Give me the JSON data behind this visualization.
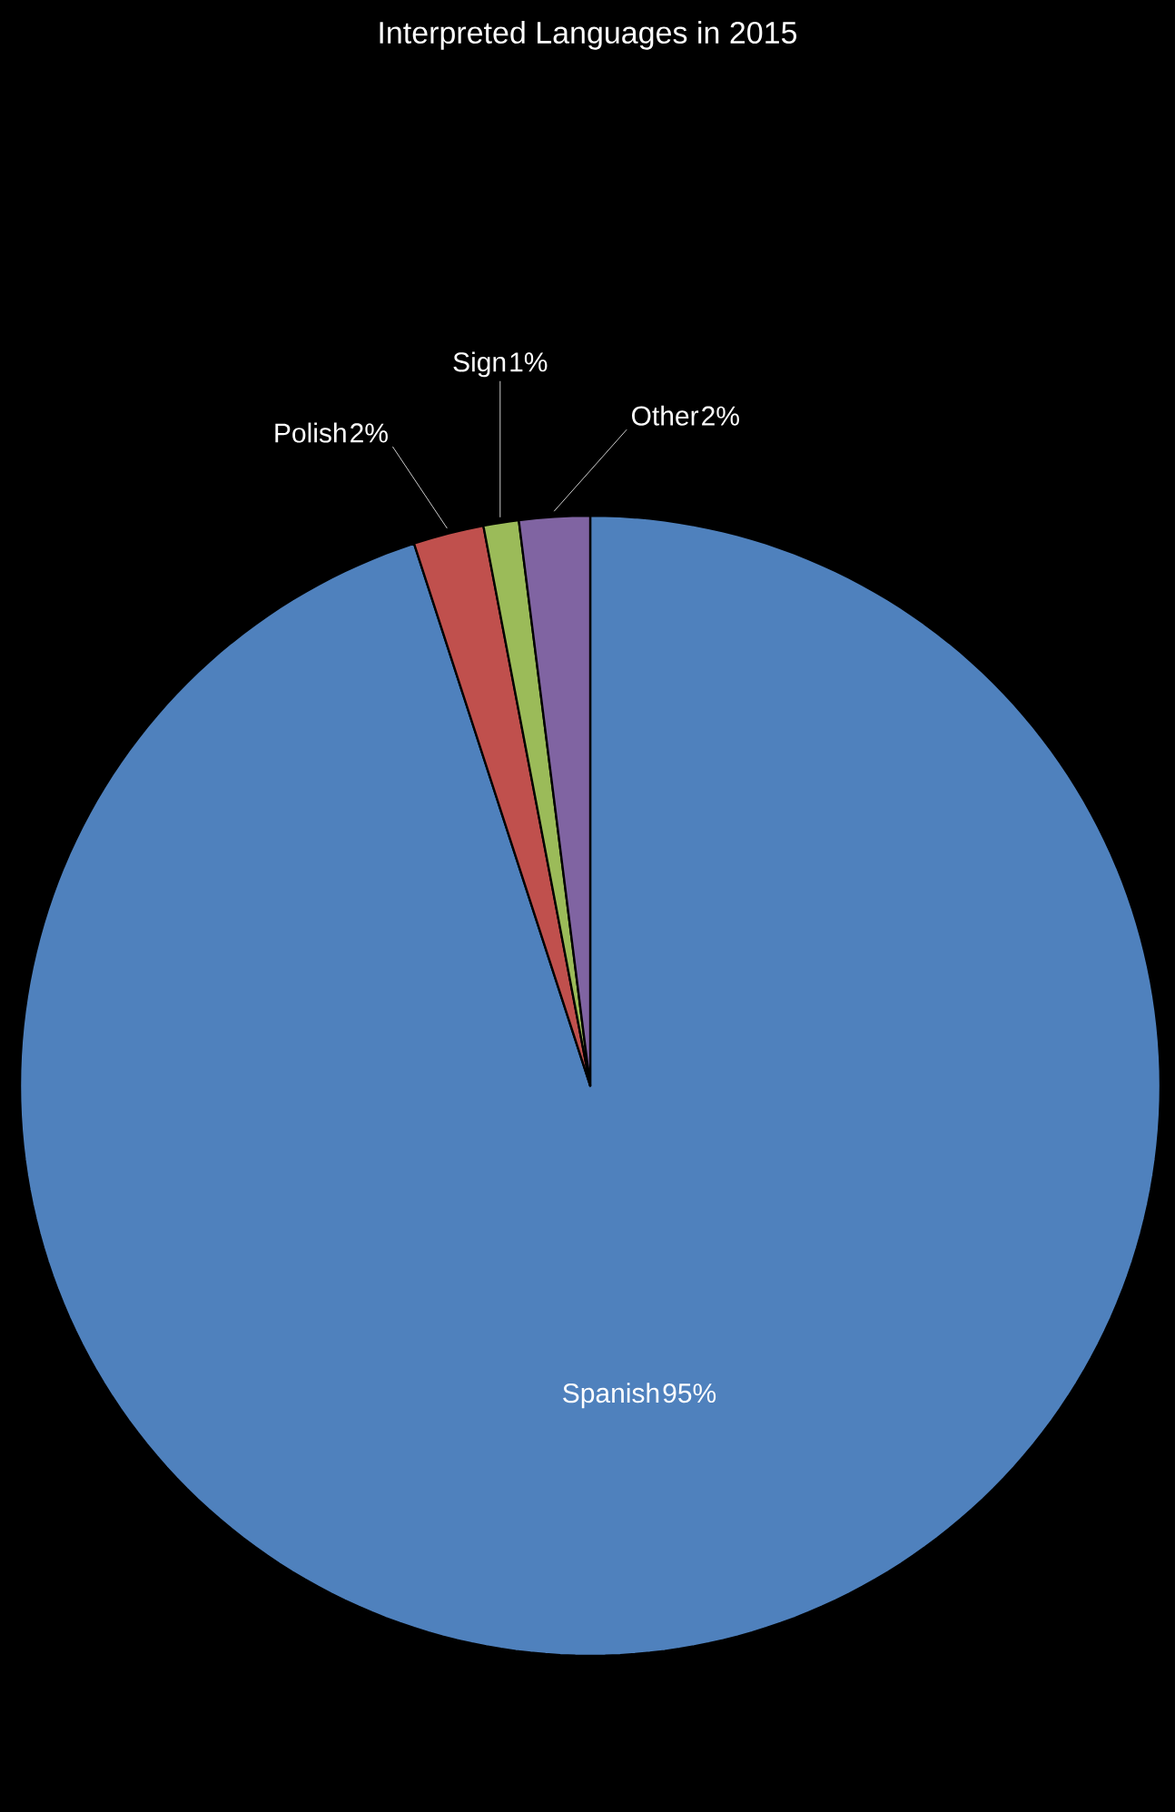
{
  "chart_data": {
    "type": "pie",
    "title": "Interpreted Languages in 2015",
    "categories": [
      "Spanish",
      "Polish",
      "Sign",
      "Other"
    ],
    "values": [
      95,
      2,
      1,
      2
    ],
    "value_labels": [
      "95%",
      "2%",
      "1%",
      "2%"
    ],
    "colors": [
      "#4f81bd",
      "#c0504d",
      "#9bbb59",
      "#8064a2"
    ],
    "legend": false
  }
}
